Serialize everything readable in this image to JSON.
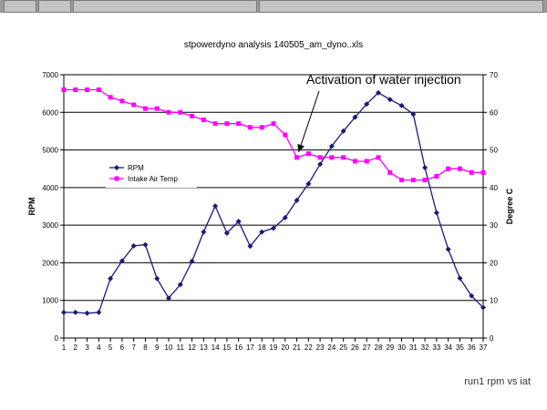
{
  "chart_data": {
    "type": "line",
    "title": "stpowerdyno analysis 140505_am_dyno..xls",
    "ylabel": "RPM",
    "y2label": "Degree C",
    "ylim": [
      0,
      7000
    ],
    "y2lim": [
      0,
      70
    ],
    "categories": [
      1,
      2,
      3,
      4,
      5,
      6,
      7,
      8,
      9,
      10,
      11,
      12,
      13,
      14,
      15,
      16,
      17,
      18,
      19,
      20,
      21,
      22,
      23,
      24,
      25,
      26,
      27,
      28,
      29,
      30,
      31,
      32,
      33,
      34,
      35,
      36,
      37
    ],
    "y_ticks": [
      0,
      1000,
      2000,
      3000,
      4000,
      5000,
      6000,
      7000
    ],
    "y2_ticks": [
      0,
      10,
      20,
      30,
      40,
      50,
      60,
      70
    ],
    "series": [
      {
        "name": "RPM",
        "axis": "left",
        "color": "#1a1a7a",
        "marker": "diamond",
        "values": [
          680,
          680,
          660,
          680,
          1580,
          2050,
          2450,
          2480,
          1580,
          1060,
          1420,
          2040,
          2820,
          3510,
          2790,
          3100,
          2440,
          2820,
          2920,
          3200,
          3660,
          4100,
          4620,
          5100,
          5500,
          5870,
          6220,
          6520,
          6340,
          6180,
          5950,
          4530,
          3330,
          2360,
          1590,
          1120,
          810
        ]
      },
      {
        "name": "Intake Air Temp",
        "axis": "right",
        "color": "#ff00ff",
        "marker": "square",
        "values": [
          66,
          66,
          66,
          66,
          64,
          63,
          62,
          61,
          61,
          60,
          60,
          59,
          58,
          57,
          57,
          57,
          56,
          56,
          57,
          54,
          48,
          49,
          48,
          48,
          48,
          47,
          47,
          48,
          44,
          42,
          42,
          42,
          43,
          45,
          45,
          44,
          44
        ]
      }
    ],
    "legend_position": "left",
    "annotation": {
      "text": "Activation of water injection",
      "target_category": 21,
      "target_series": "Intake Air Temp"
    }
  },
  "footer": {
    "caption": "run1 rpm vs iat"
  }
}
